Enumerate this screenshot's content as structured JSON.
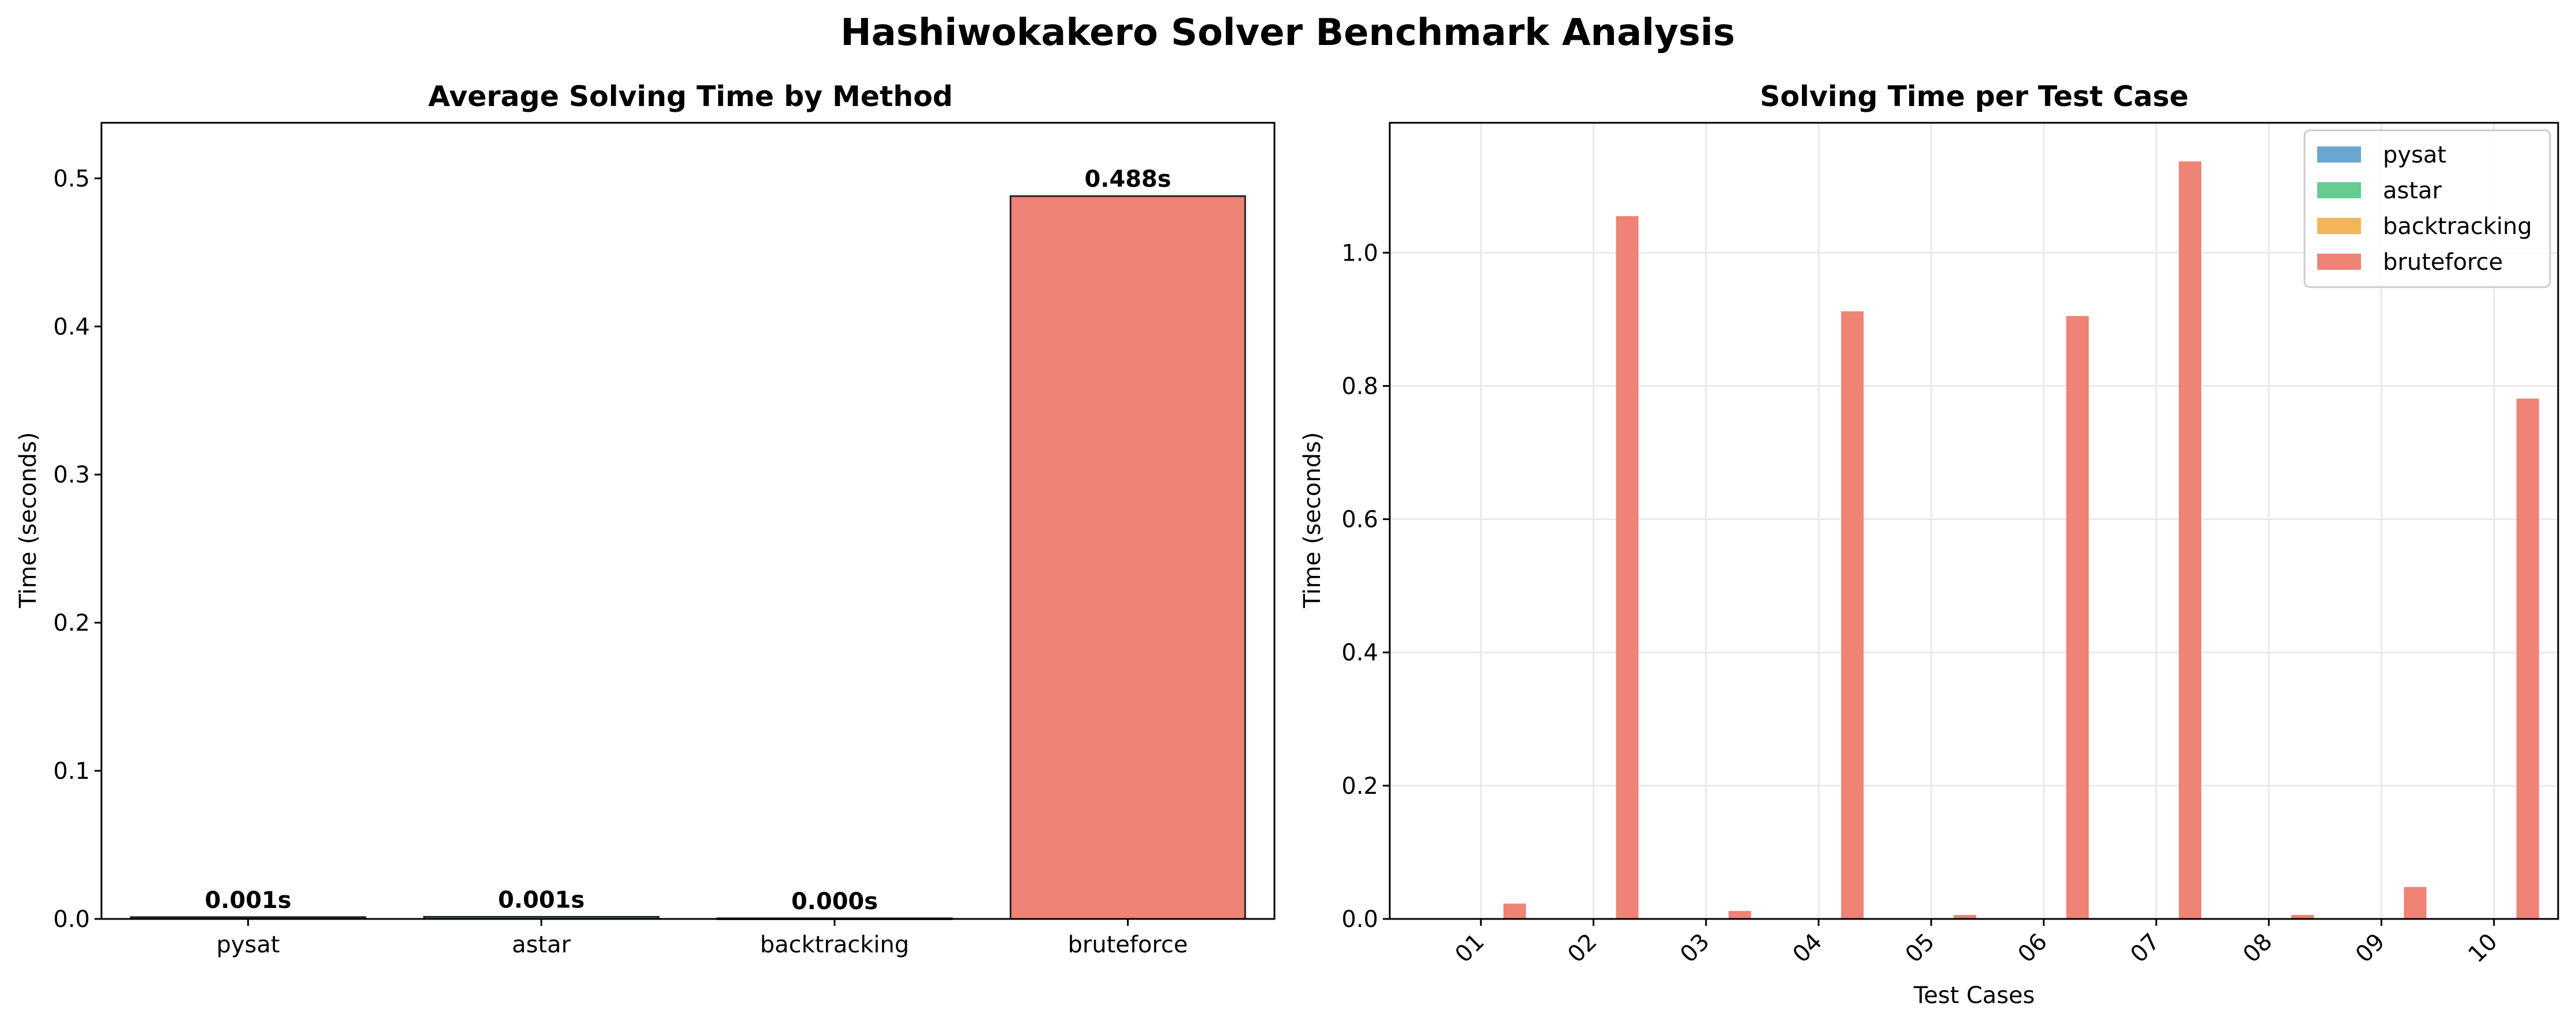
{
  "figure": {
    "title": "Hashiwokakero Solver Benchmark Analysis"
  },
  "colors": {
    "pysat": "#6aa8d2",
    "astar": "#66cc8f",
    "backtracking": "#f2b55a",
    "bruteforce": "#ee8376"
  },
  "chart_data": [
    {
      "type": "bar",
      "title": "Average Solving Time by Method",
      "xlabel": "",
      "ylabel": "Time (seconds)",
      "categories": [
        "pysat",
        "astar",
        "backtracking",
        "bruteforce"
      ],
      "values": [
        0.0012,
        0.0014,
        0.0004,
        0.488
      ],
      "data_labels": [
        "0.001s",
        "0.001s",
        "0.000s",
        "0.488s"
      ],
      "ylim": [
        0,
        0.5375
      ],
      "yticks": [
        0.0,
        0.1,
        0.2,
        0.3,
        0.4,
        0.5
      ],
      "ytick_labels": [
        "0.0",
        "0.1",
        "0.2",
        "0.3",
        "0.4",
        "0.5"
      ],
      "grid": false
    },
    {
      "type": "bar",
      "title": "Solving Time per Test Case",
      "xlabel": "Test Cases",
      "ylabel": "Time (seconds)",
      "categories": [
        "01",
        "02",
        "03",
        "04",
        "05",
        "06",
        "07",
        "08",
        "09",
        "10"
      ],
      "series": [
        {
          "name": "pysat",
          "values": [
            0.001,
            0.001,
            0.001,
            0.001,
            0.001,
            0.001,
            0.001,
            0.001,
            0.001,
            0.001
          ]
        },
        {
          "name": "astar",
          "values": [
            0.001,
            0.001,
            0.001,
            0.001,
            0.001,
            0.001,
            0.001,
            0.001,
            0.001,
            0.001
          ]
        },
        {
          "name": "backtracking",
          "values": [
            0.0005,
            0.0005,
            0.0005,
            0.0005,
            0.0005,
            0.0005,
            0.0005,
            0.0005,
            0.0005,
            0.0005
          ]
        },
        {
          "name": "bruteforce",
          "values": [
            0.023,
            1.055,
            0.012,
            0.912,
            0.006,
            0.905,
            1.137,
            0.006,
            0.048,
            0.781
          ]
        }
      ],
      "ylim": [
        0,
        1.195
      ],
      "yticks": [
        0.0,
        0.2,
        0.4,
        0.6,
        0.8,
        1.0
      ],
      "ytick_labels": [
        "0.0",
        "0.2",
        "0.4",
        "0.6",
        "0.8",
        "1.0"
      ],
      "grid": true,
      "legend_position": "top-right"
    }
  ]
}
